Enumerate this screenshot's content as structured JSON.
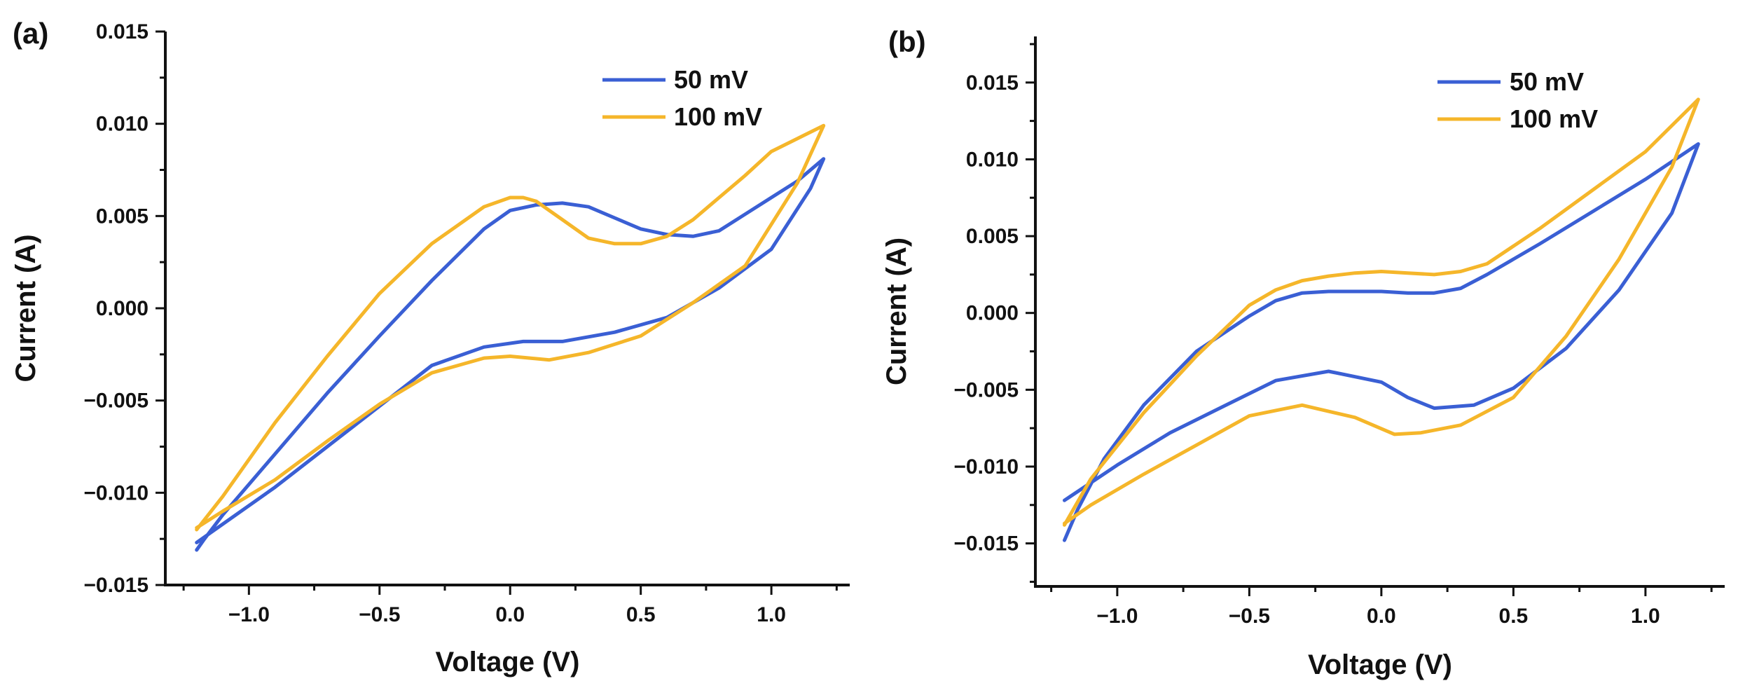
{
  "chart_data": [
    {
      "type": "line",
      "panel_label": "(a)",
      "xlabel": "Voltage (V)",
      "ylabel": "Current (A)",
      "xlim": [
        -1.32,
        1.3
      ],
      "ylim": [
        -0.015,
        0.015
      ],
      "xticks": [
        -1.0,
        -0.5,
        0.0,
        0.5,
        1.0
      ],
      "xtick_labels": [
        "−1.0",
        "−0.5",
        "0.0",
        "0.5",
        "1.0"
      ],
      "yticks": [
        -0.015,
        -0.01,
        -0.005,
        0.0,
        0.005,
        0.01,
        0.015
      ],
      "ytick_labels": [
        "−0.015",
        "−0.010",
        "−0.005",
        "0.000",
        "0.005",
        "0.010",
        "0.015"
      ],
      "legend_position": "top-right",
      "series": [
        {
          "name": "50 mV",
          "color": "#3a5fd4",
          "x": [
            -1.2,
            -1.17,
            -1.1,
            -0.9,
            -0.7,
            -0.5,
            -0.3,
            -0.1,
            0.0,
            0.1,
            0.2,
            0.3,
            0.4,
            0.5,
            0.6,
            0.7,
            0.8,
            0.9,
            1.0,
            1.1,
            1.2,
            1.15,
            1.0,
            0.8,
            0.6,
            0.4,
            0.2,
            0.05,
            -0.1,
            -0.3,
            -0.5,
            -0.7,
            -0.9,
            -1.1,
            -1.2
          ],
          "y": [
            -0.0131,
            -0.0125,
            -0.0112,
            -0.0079,
            -0.0046,
            -0.0015,
            0.0015,
            0.0043,
            0.0053,
            0.0056,
            0.0057,
            0.0055,
            0.0049,
            0.0043,
            0.004,
            0.0039,
            0.0042,
            0.0051,
            0.006,
            0.0069,
            0.0081,
            0.0065,
            0.0032,
            0.0011,
            -0.0005,
            -0.0013,
            -0.0018,
            -0.0018,
            -0.0021,
            -0.0031,
            -0.0053,
            -0.0075,
            -0.0097,
            -0.0117,
            -0.0127
          ]
        },
        {
          "name": "100 mV",
          "color": "#f5b62a",
          "x": [
            -1.2,
            -1.1,
            -0.9,
            -0.7,
            -0.5,
            -0.3,
            -0.1,
            0.0,
            0.05,
            0.1,
            0.2,
            0.3,
            0.4,
            0.5,
            0.6,
            0.7,
            0.8,
            0.9,
            1.0,
            1.1,
            1.2,
            1.1,
            0.9,
            0.7,
            0.5,
            0.3,
            0.15,
            0.0,
            -0.1,
            -0.3,
            -0.5,
            -0.7,
            -0.9,
            -1.1,
            -1.2
          ],
          "y": [
            -0.012,
            -0.0102,
            -0.0062,
            -0.0026,
            0.0008,
            0.0035,
            0.0055,
            0.006,
            0.006,
            0.0058,
            0.0048,
            0.0038,
            0.0035,
            0.0035,
            0.0039,
            0.0048,
            0.006,
            0.0072,
            0.0085,
            0.0092,
            0.0099,
            0.0068,
            0.0023,
            0.0003,
            -0.0015,
            -0.0024,
            -0.0028,
            -0.0026,
            -0.0027,
            -0.0035,
            -0.0052,
            -0.0072,
            -0.0093,
            -0.011,
            -0.0119
          ]
        }
      ]
    },
    {
      "type": "line",
      "panel_label": "(b)",
      "xlabel": "Voltage (V)",
      "ylabel": "Current (A)",
      "xlim": [
        -1.31,
        1.3
      ],
      "ylim": [
        -0.0178,
        0.018
      ],
      "xticks": [
        -1.0,
        -0.5,
        0.0,
        0.5,
        1.0
      ],
      "xtick_labels": [
        "−1.0",
        "−0.5",
        "0.0",
        "0.5",
        "1.0"
      ],
      "yticks": [
        -0.015,
        -0.01,
        -0.005,
        0.0,
        0.005,
        0.01,
        0.015
      ],
      "ytick_labels": [
        "−0.015",
        "−0.010",
        "−0.005",
        "0.000",
        "0.005",
        "0.010",
        "0.015"
      ],
      "legend_position": "top-right",
      "series": [
        {
          "name": "50 mV",
          "color": "#3a5fd4",
          "x": [
            -1.2,
            -1.15,
            -1.05,
            -0.9,
            -0.7,
            -0.5,
            -0.4,
            -0.3,
            -0.2,
            -0.1,
            0.0,
            0.1,
            0.2,
            0.3,
            0.4,
            0.6,
            0.8,
            1.0,
            1.2,
            1.1,
            0.9,
            0.7,
            0.5,
            0.35,
            0.2,
            0.1,
            0.0,
            -0.2,
            -0.4,
            -0.6,
            -0.8,
            -1.0,
            -1.2
          ],
          "y": [
            -0.0148,
            -0.0128,
            -0.0095,
            -0.006,
            -0.0025,
            -0.0002,
            0.0008,
            0.0013,
            0.0014,
            0.0014,
            0.0014,
            0.0013,
            0.0013,
            0.0016,
            0.0025,
            0.0045,
            0.0066,
            0.0087,
            0.011,
            0.0065,
            0.0015,
            -0.0023,
            -0.0049,
            -0.006,
            -0.0062,
            -0.0055,
            -0.0045,
            -0.0038,
            -0.0044,
            -0.0061,
            -0.0078,
            -0.0099,
            -0.0122
          ]
        },
        {
          "name": "100 mV",
          "color": "#f5b62a",
          "x": [
            -1.2,
            -1.1,
            -0.9,
            -0.7,
            -0.5,
            -0.4,
            -0.3,
            -0.2,
            -0.1,
            0.0,
            0.1,
            0.2,
            0.3,
            0.4,
            0.6,
            0.8,
            1.0,
            1.2,
            1.1,
            0.9,
            0.7,
            0.5,
            0.3,
            0.15,
            0.05,
            -0.1,
            -0.3,
            -0.5,
            -0.7,
            -0.9,
            -1.1,
            -1.2
          ],
          "y": [
            -0.0138,
            -0.0108,
            -0.0065,
            -0.0028,
            0.0005,
            0.0015,
            0.0021,
            0.0024,
            0.0026,
            0.0027,
            0.0026,
            0.0025,
            0.0027,
            0.0032,
            0.0055,
            0.008,
            0.0105,
            0.0139,
            0.0095,
            0.0035,
            -0.0015,
            -0.0055,
            -0.0073,
            -0.0078,
            -0.0079,
            -0.0068,
            -0.006,
            -0.0067,
            -0.0086,
            -0.0105,
            -0.0125,
            -0.0137
          ]
        }
      ]
    }
  ]
}
